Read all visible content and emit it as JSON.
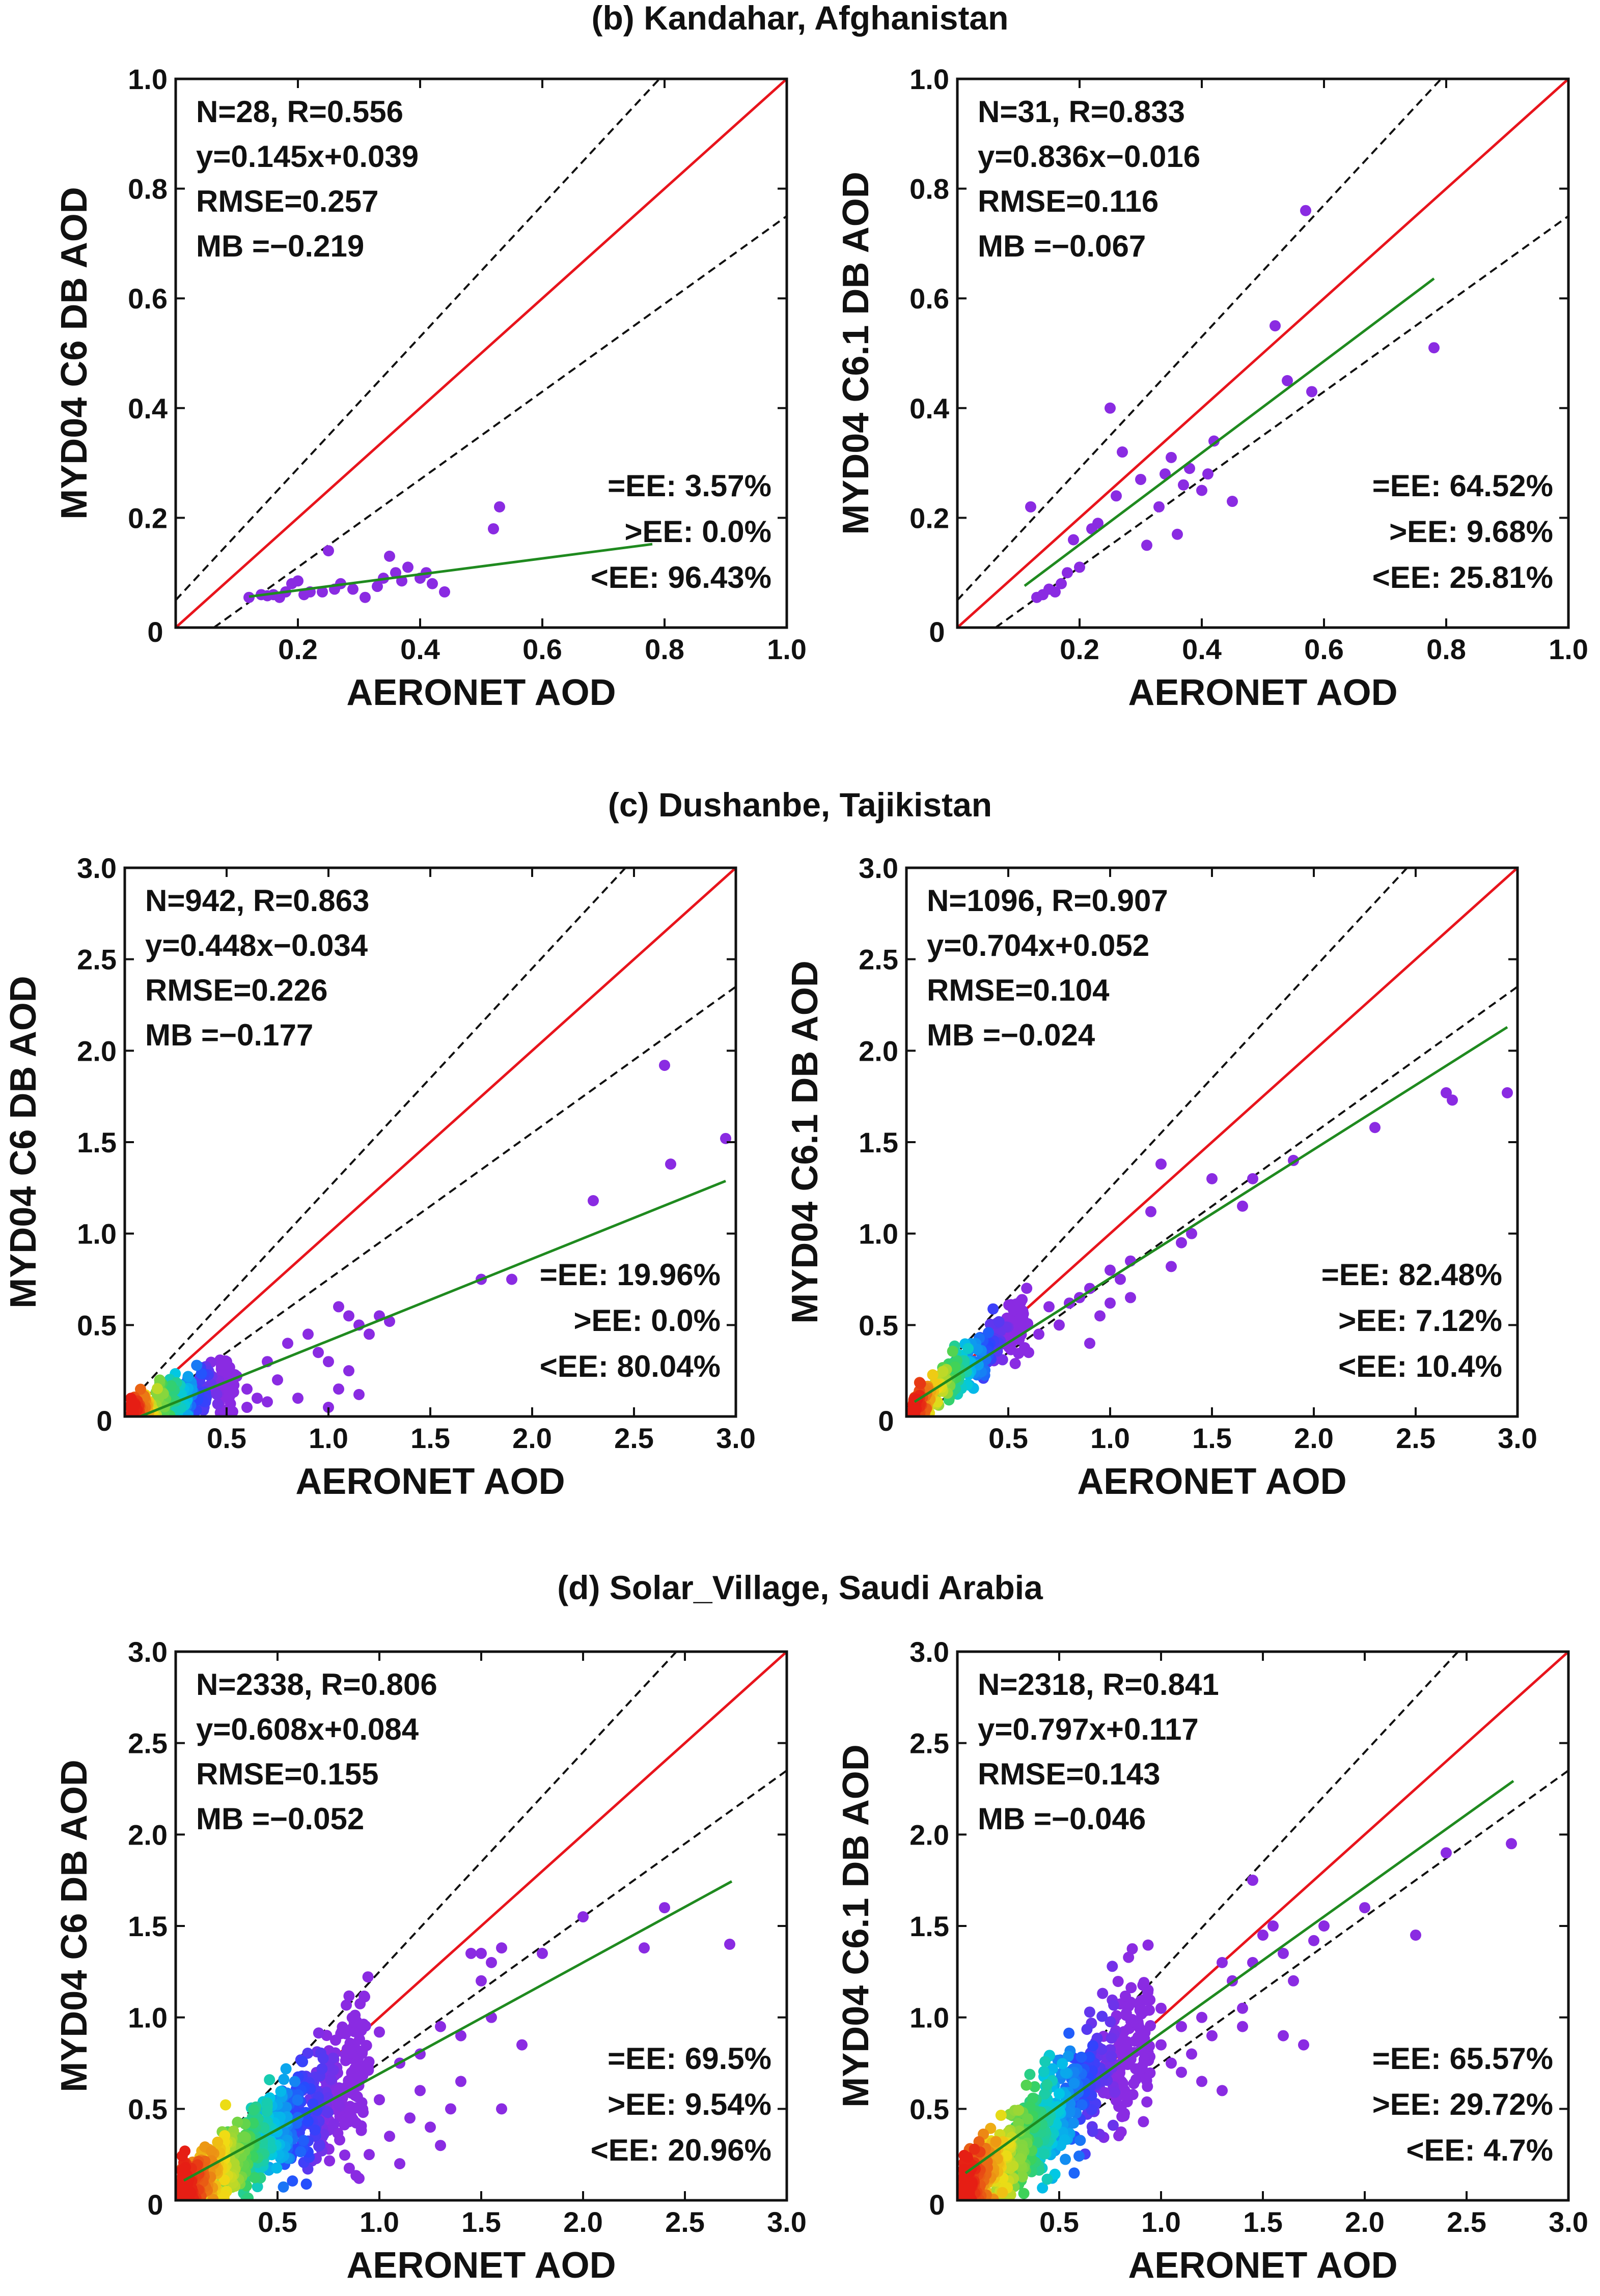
{
  "colors": {
    "one_to_one": "#e8141c",
    "ee_envelope": "#111111",
    "fit": "#1f8a1f",
    "point": "#8a2be2"
  },
  "rows": [
    {
      "title": "(b) Kandahar, Afghanistan"
    },
    {
      "title": "(c) Dushanbe, Tajikistan"
    },
    {
      "title": "(d) Solar_Village, Saudi Arabia"
    }
  ],
  "chart_data": [
    {
      "type": "scatter",
      "row": 0,
      "col": 0,
      "xlabel": "AERONET AOD",
      "ylabel": "MYD04 C6 DB AOD",
      "xlim": [
        0,
        1
      ],
      "ylim": [
        0,
        1
      ],
      "xticks": [
        "0.2",
        "0.4",
        "0.6",
        "0.8",
        "1.0"
      ],
      "yticks": [
        "0.2",
        "0.4",
        "0.6",
        "0.8",
        "1.0"
      ],
      "origin_label": "0",
      "stats": [
        "N=28, R=0.556",
        "y=0.145x+0.039",
        "RMSE=0.257",
        "MB =−0.219"
      ],
      "ee": [
        "=EE: 3.57%",
        ">EE: 0.0%",
        "<EE: 96.43%"
      ],
      "fit": {
        "slope": 0.145,
        "intercept": 0.039,
        "x": [
          0.12,
          0.78
        ]
      },
      "points": [
        [
          0.12,
          0.055
        ],
        [
          0.14,
          0.06
        ],
        [
          0.16,
          0.06
        ],
        [
          0.17,
          0.055
        ],
        [
          0.18,
          0.065
        ],
        [
          0.19,
          0.08
        ],
        [
          0.2,
          0.085
        ],
        [
          0.21,
          0.06
        ],
        [
          0.22,
          0.065
        ],
        [
          0.25,
          0.14
        ],
        [
          0.26,
          0.07
        ],
        [
          0.27,
          0.08
        ],
        [
          0.31,
          0.055
        ],
        [
          0.35,
          0.13
        ],
        [
          0.36,
          0.1
        ],
        [
          0.37,
          0.085
        ],
        [
          0.38,
          0.11
        ],
        [
          0.4,
          0.09
        ],
        [
          0.42,
          0.08
        ],
        [
          0.44,
          0.065
        ],
        [
          0.52,
          0.18
        ],
        [
          0.53,
          0.22
        ],
        [
          0.29,
          0.07
        ],
        [
          0.24,
          0.065
        ],
        [
          0.34,
          0.09
        ],
        [
          0.41,
          0.1
        ],
        [
          0.15,
          0.058
        ],
        [
          0.33,
          0.075
        ]
      ]
    },
    {
      "type": "scatter",
      "row": 0,
      "col": 1,
      "xlabel": "AERONET AOD",
      "ylabel": "MYD04 C6.1 DB AOD",
      "xlim": [
        0,
        1
      ],
      "ylim": [
        0,
        1
      ],
      "xticks": [
        "0.2",
        "0.4",
        "0.6",
        "0.8",
        "1.0"
      ],
      "yticks": [
        "0.2",
        "0.4",
        "0.6",
        "0.8",
        "1.0"
      ],
      "origin_label": "0",
      "stats": [
        "N=31, R=0.833",
        "y=0.836x−0.016",
        "RMSE=0.116",
        "MB =−0.067"
      ],
      "ee": [
        "=EE: 64.52%",
        ">EE: 9.68%",
        "<EE: 25.81%"
      ],
      "fit": {
        "slope": 0.836,
        "intercept": -0.016,
        "x": [
          0.11,
          0.78
        ]
      },
      "points": [
        [
          0.12,
          0.22
        ],
        [
          0.13,
          0.055
        ],
        [
          0.15,
          0.07
        ],
        [
          0.17,
          0.08
        ],
        [
          0.18,
          0.1
        ],
        [
          0.19,
          0.16
        ],
        [
          0.2,
          0.11
        ],
        [
          0.22,
          0.18
        ],
        [
          0.25,
          0.4
        ],
        [
          0.26,
          0.24
        ],
        [
          0.27,
          0.32
        ],
        [
          0.31,
          0.15
        ],
        [
          0.34,
          0.28
        ],
        [
          0.35,
          0.31
        ],
        [
          0.36,
          0.17
        ],
        [
          0.37,
          0.26
        ],
        [
          0.38,
          0.29
        ],
        [
          0.4,
          0.25
        ],
        [
          0.41,
          0.28
        ],
        [
          0.42,
          0.34
        ],
        [
          0.45,
          0.23
        ],
        [
          0.52,
          0.55
        ],
        [
          0.54,
          0.45
        ],
        [
          0.58,
          0.43
        ],
        [
          0.57,
          0.76
        ],
        [
          0.78,
          0.51
        ],
        [
          0.23,
          0.19
        ],
        [
          0.16,
          0.065
        ],
        [
          0.14,
          0.06
        ],
        [
          0.3,
          0.27
        ],
        [
          0.33,
          0.22
        ]
      ]
    },
    {
      "type": "scatter",
      "row": 1,
      "col": 0,
      "xlabel": "AERONET AOD",
      "ylabel": "MYD04 C6 DB AOD",
      "xlim": [
        0,
        3
      ],
      "ylim": [
        0,
        3
      ],
      "xticks": [
        "0.5",
        "1.0",
        "1.5",
        "2.0",
        "2.5",
        "3.0"
      ],
      "yticks": [
        "0.5",
        "1.0",
        "1.5",
        "2.0",
        "2.5",
        "3.0"
      ],
      "origin_label": "0",
      "stats": [
        "N=942, R=0.863",
        "y=0.448x−0.034",
        "RMSE=0.226",
        "MB =−0.177"
      ],
      "ee": [
        "=EE: 19.96%",
        ">EE: 0.0%",
        "<EE: 80.04%"
      ],
      "fit": {
        "slope": 0.448,
        "intercept": -0.034,
        "x": [
          0.04,
          2.95
        ]
      },
      "points": [
        [
          0.5,
          0.3
        ],
        [
          0.55,
          0.22
        ],
        [
          0.6,
          0.15
        ],
        [
          0.65,
          0.1
        ],
        [
          0.7,
          0.08
        ],
        [
          0.8,
          0.4
        ],
        [
          0.9,
          0.45
        ],
        [
          1.0,
          0.3
        ],
        [
          1.05,
          0.6
        ],
        [
          1.1,
          0.55
        ],
        [
          1.15,
          0.5
        ],
        [
          1.2,
          0.45
        ],
        [
          1.25,
          0.55
        ],
        [
          1.3,
          0.52
        ],
        [
          1.05,
          0.15
        ],
        [
          1.1,
          0.25
        ],
        [
          0.95,
          0.35
        ],
        [
          1.15,
          0.12
        ],
        [
          1.75,
          0.75
        ],
        [
          1.9,
          0.75
        ],
        [
          2.3,
          1.18
        ],
        [
          2.65,
          1.92
        ],
        [
          2.68,
          1.38
        ],
        [
          2.95,
          1.52
        ],
        [
          0.75,
          0.2
        ],
        [
          0.85,
          0.1
        ],
        [
          1.0,
          0.05
        ],
        [
          0.7,
          0.3
        ],
        [
          0.6,
          0.05
        ]
      ],
      "dense": {
        "n": 260,
        "xmin": 0.03,
        "xmax": 0.55,
        "slope": 0.35,
        "spread": 0.09
      }
    },
    {
      "type": "scatter",
      "row": 1,
      "col": 1,
      "xlabel": "AERONET AOD",
      "ylabel": "MYD04 C6.1 DB AOD",
      "xlim": [
        0,
        3
      ],
      "ylim": [
        0,
        3
      ],
      "xticks": [
        "0.5",
        "1.0",
        "1.5",
        "2.0",
        "2.5",
        "3.0"
      ],
      "yticks": [
        "0.5",
        "1.0",
        "1.5",
        "2.0",
        "2.5",
        "3.0"
      ],
      "origin_label": "0",
      "stats": [
        "N=1096, R=0.907",
        "y=0.704x+0.052",
        "RMSE=0.104",
        "MB =−0.024"
      ],
      "ee": [
        "=EE: 82.48%",
        ">EE: 7.12%",
        "<EE: 10.4%"
      ],
      "fit": {
        "slope": 0.704,
        "intercept": 0.052,
        "x": [
          0.04,
          2.95
        ]
      },
      "points": [
        [
          0.7,
          0.6
        ],
        [
          0.75,
          0.5
        ],
        [
          0.8,
          0.62
        ],
        [
          0.85,
          0.65
        ],
        [
          0.9,
          0.7
        ],
        [
          0.95,
          0.55
        ],
        [
          1.0,
          0.8
        ],
        [
          1.05,
          0.75
        ],
        [
          1.1,
          0.65
        ],
        [
          1.2,
          1.12
        ],
        [
          1.25,
          1.38
        ],
        [
          1.3,
          0.82
        ],
        [
          1.35,
          0.95
        ],
        [
          1.5,
          1.3
        ],
        [
          1.65,
          1.15
        ],
        [
          1.7,
          1.3
        ],
        [
          1.9,
          1.4
        ],
        [
          2.3,
          1.58
        ],
        [
          2.65,
          1.77
        ],
        [
          2.68,
          1.73
        ],
        [
          2.95,
          1.77
        ],
        [
          0.9,
          0.4
        ],
        [
          1.0,
          0.62
        ],
        [
          0.65,
          0.45
        ],
        [
          1.1,
          0.85
        ],
        [
          1.4,
          1.0
        ],
        [
          0.6,
          0.35
        ]
      ],
      "dense": {
        "n": 300,
        "xmin": 0.03,
        "xmax": 0.6,
        "slope": 0.85,
        "spread": 0.1
      }
    },
    {
      "type": "scatter",
      "row": 2,
      "col": 0,
      "xlabel": "AERONET AOD",
      "ylabel": "MYD04 C6 DB AOD",
      "xlim": [
        0,
        3
      ],
      "ylim": [
        0,
        3
      ],
      "xticks": [
        "0.5",
        "1.0",
        "1.5",
        "2.0",
        "2.5",
        "3.0"
      ],
      "yticks": [
        "0.5",
        "1.0",
        "1.5",
        "2.0",
        "2.5",
        "3.0"
      ],
      "origin_label": "0",
      "stats": [
        "N=2338, R=0.806",
        "y=0.608x+0.084",
        "RMSE=0.155",
        "MB =−0.052"
      ],
      "ee": [
        "=EE: 69.5%",
        ">EE: 9.54%",
        "<EE: 20.96%"
      ],
      "fit": {
        "slope": 0.608,
        "intercept": 0.084,
        "x": [
          0.04,
          2.73
        ]
      },
      "points": [
        [
          1.0,
          0.92
        ],
        [
          1.1,
          0.75
        ],
        [
          1.2,
          0.6
        ],
        [
          1.3,
          0.95
        ],
        [
          1.35,
          0.5
        ],
        [
          1.4,
          0.65
        ],
        [
          1.45,
          1.35
        ],
        [
          1.5,
          1.35
        ],
        [
          1.55,
          1.3
        ],
        [
          1.6,
          1.38
        ],
        [
          1.55,
          1.0
        ],
        [
          1.7,
          0.85
        ],
        [
          1.8,
          1.35
        ],
        [
          2.0,
          1.55
        ],
        [
          2.3,
          1.38
        ],
        [
          2.4,
          1.6
        ],
        [
          2.72,
          1.4
        ],
        [
          1.05,
          0.35
        ],
        [
          1.15,
          0.45
        ],
        [
          0.95,
          0.25
        ],
        [
          1.25,
          0.4
        ],
        [
          1.6,
          0.5
        ],
        [
          1.4,
          0.9
        ],
        [
          0.9,
          0.12
        ],
        [
          1.1,
          0.2
        ],
        [
          1.3,
          0.3
        ],
        [
          1.5,
          1.2
        ],
        [
          1.2,
          0.8
        ],
        [
          1.0,
          0.55
        ]
      ],
      "dense": {
        "n": 900,
        "xmin": 0.03,
        "xmax": 0.95,
        "slope": 0.75,
        "spread": 0.16
      }
    },
    {
      "type": "scatter",
      "row": 2,
      "col": 1,
      "xlabel": "AERONET AOD",
      "ylabel": "MYD04 C6.1 DB AOD",
      "xlim": [
        0,
        3
      ],
      "ylim": [
        0,
        3
      ],
      "xticks": [
        "0.5",
        "1.0",
        "1.5",
        "2.0",
        "2.5",
        "3.0"
      ],
      "yticks": [
        "0.5",
        "1.0",
        "1.5",
        "2.0",
        "2.5",
        "3.0"
      ],
      "origin_label": "0",
      "stats": [
        "N=2318, R=0.841",
        "y=0.797x+0.117",
        "RMSE=0.143",
        "MB =−0.046"
      ],
      "ee": [
        "=EE: 65.57%",
        ">EE: 29.72%",
        "<EE: 4.7%"
      ],
      "fit": {
        "slope": 0.797,
        "intercept": 0.117,
        "x": [
          0.04,
          2.73
        ]
      },
      "points": [
        [
          1.0,
          1.05
        ],
        [
          1.05,
          0.75
        ],
        [
          1.1,
          0.95
        ],
        [
          1.2,
          1.0
        ],
        [
          1.25,
          0.9
        ],
        [
          1.3,
          1.3
        ],
        [
          1.35,
          1.2
        ],
        [
          1.4,
          1.05
        ],
        [
          1.45,
          1.75
        ],
        [
          1.5,
          1.45
        ],
        [
          1.55,
          1.5
        ],
        [
          1.6,
          0.9
        ],
        [
          1.65,
          1.2
        ],
        [
          1.7,
          0.85
        ],
        [
          1.75,
          1.42
        ],
        [
          1.8,
          1.5
        ],
        [
          2.0,
          1.6
        ],
        [
          2.25,
          1.45
        ],
        [
          2.4,
          1.9
        ],
        [
          2.72,
          1.95
        ],
        [
          1.1,
          0.7
        ],
        [
          1.15,
          0.8
        ],
        [
          1.3,
          0.6
        ],
        [
          1.45,
          1.3
        ],
        [
          1.6,
          1.35
        ],
        [
          1.4,
          0.95
        ],
        [
          1.2,
          0.65
        ],
        [
          1.0,
          0.85
        ]
      ],
      "dense": {
        "n": 900,
        "xmin": 0.03,
        "xmax": 0.95,
        "slope": 0.95,
        "spread": 0.17
      }
    }
  ]
}
